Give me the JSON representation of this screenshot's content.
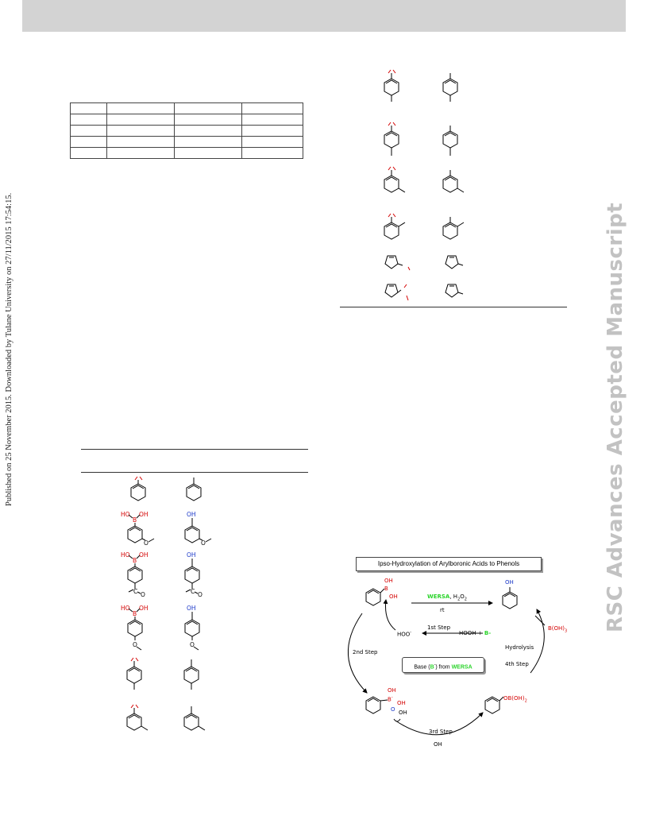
{
  "side_note": "Published on 25 November 2015. Downloaded by Tulane University on 27/11/2015 17:54:15.",
  "watermark": "RSC Advances Accepted Manuscript",
  "table1": {
    "rows": 5,
    "cols": 4
  },
  "left_structures": [
    {
      "reactant": "iodo-benzene",
      "product": "benzene"
    },
    {
      "reactant": "3-methoxyphenylboronic-acid",
      "product": "3-methoxyphenol"
    },
    {
      "reactant": "4-acetylphenylboronic-acid",
      "product": "4-hydroxyacetophenone"
    },
    {
      "reactant": "4-methoxyphenylboronic-acid",
      "product": "4-methoxyphenol"
    },
    {
      "reactant": "p-tolyl",
      "product": "p-toluene"
    },
    {
      "reactant": "m-tolyl",
      "product": "m-toluene"
    }
  ],
  "right_structures": [
    {
      "reactant": "p-tolyl",
      "product": "p-xylene-like"
    },
    {
      "reactant": "p-tolyl",
      "product": "p-xylene-like"
    },
    {
      "reactant": "m-tolyl",
      "product": "m-xylene-like"
    },
    {
      "reactant": "o-tolyl",
      "product": "o-xylene-like"
    },
    {
      "reactant": "thiophene",
      "product": "thiophene"
    },
    {
      "reactant": "thiophene",
      "product": "thiophene"
    }
  ],
  "labels": {
    "boronic": "HO",
    "boronic_b": "B",
    "boronic_oh": "OH",
    "phenol_oh": "OH",
    "carbonyl_c": "C",
    "carbonyl_o": "O",
    "methoxy_o": "O"
  },
  "scheme": {
    "title": "Ipso-Hydroxylation of Arylboronic Acids to Phenols",
    "reagent_green": "WERSA",
    "reagent_rest": ", H",
    "reagent_sub1": "2",
    "reagent_o": "O",
    "reagent_sub2": "2",
    "rt": "rt",
    "step1": "1st Step",
    "hooh": "HOOH  +",
    "b_minus": "B-",
    "hoo": "HOO",
    "hoo_charge": "-",
    "step2": "2nd Step",
    "hydrolysis": "Hydrolysis",
    "step4": "4th Step",
    "base_pre": "Base (",
    "base_b": "B",
    "base_mid": ") from ",
    "base_wersa": "WERSA",
    "boh3": "B(OH)",
    "boh3_sub": "3",
    "ob_oh2": "OB(OH)",
    "ob_oh2_sub": "2",
    "step3": "3rd Step",
    "oh_bottom": "OH",
    "oh": "OH",
    "b": "B",
    "b_charge": "-",
    "o": "O"
  },
  "colors": {
    "red": "#d40000",
    "blue": "#1a37c8",
    "green": "#2bd42b",
    "header": "#d3d3d3",
    "watermark": "#c2c2c2"
  }
}
